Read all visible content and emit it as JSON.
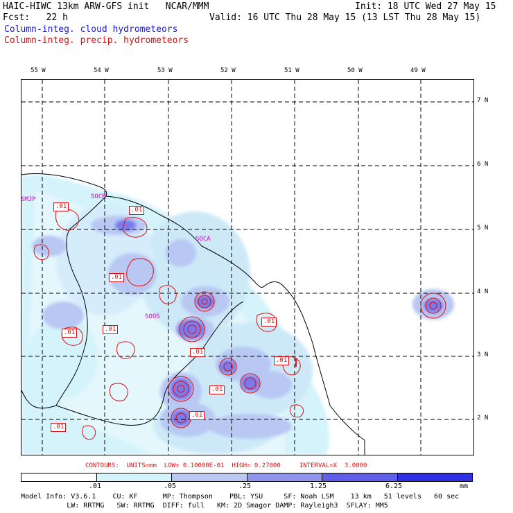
{
  "header": {
    "line1_left": "HAIC-HIWC 13km ARW-GFS init   NCAR/MMM",
    "line1_right": "Init: 18 UTC Wed 27 May 15",
    "line2_left": "Fcst:   22 h",
    "line2_right": "Valid: 16 UTC Thu 28 May 15 (13 LST Thu 28 May 15)",
    "legend_cloud": "Column-integ. cloud hydrometeors",
    "legend_precip": "Column-integ. precip. hydrometeors"
  },
  "axes": {
    "lon_labels": [
      "55 W",
      "54 W",
      "53 W",
      "52 W",
      "51 W",
      "50 W",
      "49 W"
    ],
    "lat_labels": [
      "7 N",
      "6 N",
      "5 N",
      "4 N",
      "3 N",
      "2 N"
    ]
  },
  "stations": [
    "SMJP",
    "SOCM",
    "SOCA",
    "SOOS"
  ],
  "contour_labels": [
    ".01",
    ".01",
    ".01",
    ".01",
    ".01",
    ".01",
    ".01",
    ".01",
    ".01",
    ".01",
    ".01"
  ],
  "marker": "I",
  "contour_note": "CONTOURS:  UNITS=mm  LOW= 0.10000E-01  HIGH= 0.27000     INTERVAL=X  3.0000",
  "colorbar": {
    "ticks": [
      ".01",
      ".05",
      ".25",
      "1.25",
      "6.25",
      "mm"
    ],
    "colors": [
      "#ffffff",
      "#d5f3fb",
      "#b8c8f3",
      "#8f95ee",
      "#5e5ee8",
      "#2f2fe6"
    ]
  },
  "model_info": {
    "line1": "Model Info: V3.6.1    CU: KF      MP: Thompson    PBL: YSU     SF: Noah LSM    13 km   51 levels   60 sec",
    "line2": "           LW: RRTMG   SW: RRTMG  DIFF: full   KM: 2D Smagor DAMP: Rayleigh3  SFLAY: MM5"
  },
  "colors": {
    "cloud": "#1a1ae6",
    "precip": "#e01010",
    "station": "#cc00cc"
  }
}
